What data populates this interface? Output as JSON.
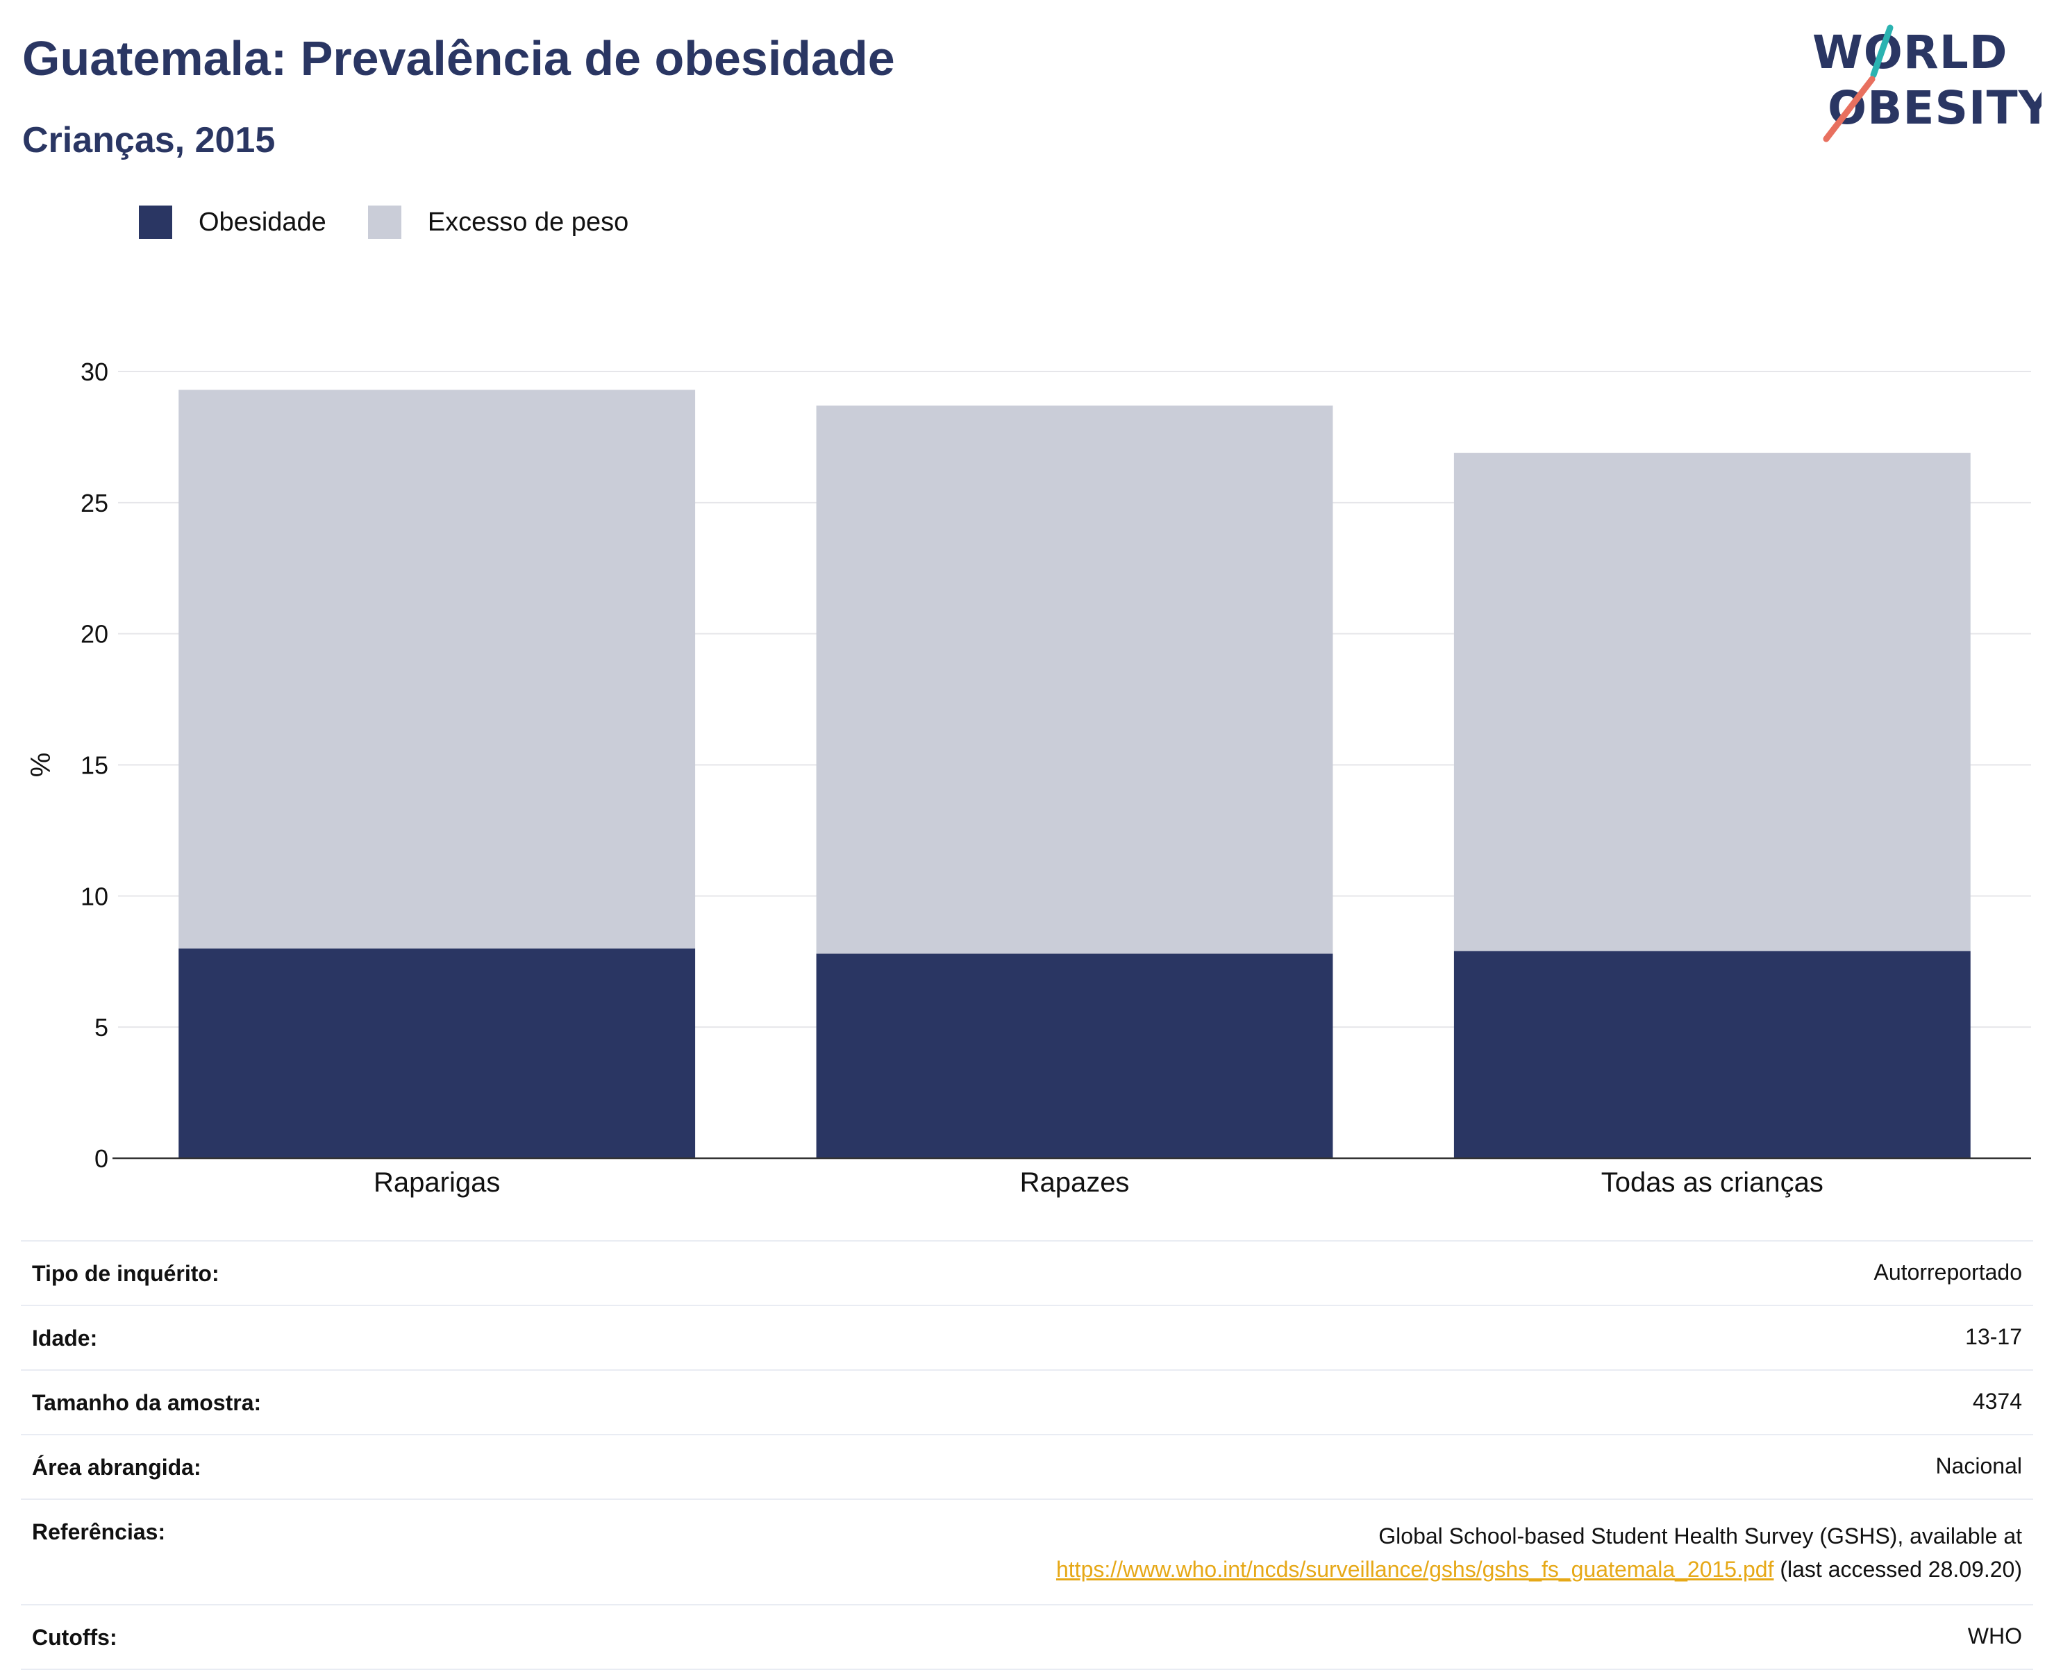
{
  "header": {
    "title": "Guatemala: Prevalência de obesidade",
    "subtitle": "Crianças, 2015"
  },
  "logo": {
    "line1": "WORLD",
    "line2": "OBESITY",
    "slash_colors": [
      "#2bb3b1",
      "#e8705f"
    ]
  },
  "legend": [
    {
      "label": "Obesidade",
      "color": "#2a3663"
    },
    {
      "label": "Excesso de peso",
      "color": "#cacdd8"
    }
  ],
  "chart_data": {
    "type": "bar",
    "stacked": true,
    "categories": [
      "Raparigas",
      "Rapazes",
      "Todas as crianças"
    ],
    "series": [
      {
        "name": "Obesidade",
        "color": "#2a3663",
        "values": [
          8.0,
          7.8,
          7.9
        ]
      },
      {
        "name": "Excesso de peso",
        "color": "#cacdd8",
        "values": [
          21.3,
          20.9,
          19.0
        ]
      }
    ],
    "ylabel": "%",
    "ylim": [
      0,
      30
    ],
    "yticks": [
      0,
      5,
      10,
      15,
      20,
      25,
      30
    ],
    "grid": true,
    "legend_position": "top-left"
  },
  "meta": [
    {
      "label": "Tipo de inquérito:",
      "value": "Autorreportado"
    },
    {
      "label": "Idade:",
      "value": "13-17"
    },
    {
      "label": "Tamanho da amostra:",
      "value": "4374"
    },
    {
      "label": "Área abrangida:",
      "value": "Nacional"
    },
    {
      "label": "Referências:",
      "value_line1": "Global School-based Student Health Survey (GSHS), available at",
      "link": "https://www.who.int/ncds/surveillance/gshs/gshs_fs_guatemala_2015.pdf",
      "value_suffix": " (last accessed 28.09.20)"
    },
    {
      "label": "Cutoffs:",
      "value": "WHO"
    }
  ]
}
